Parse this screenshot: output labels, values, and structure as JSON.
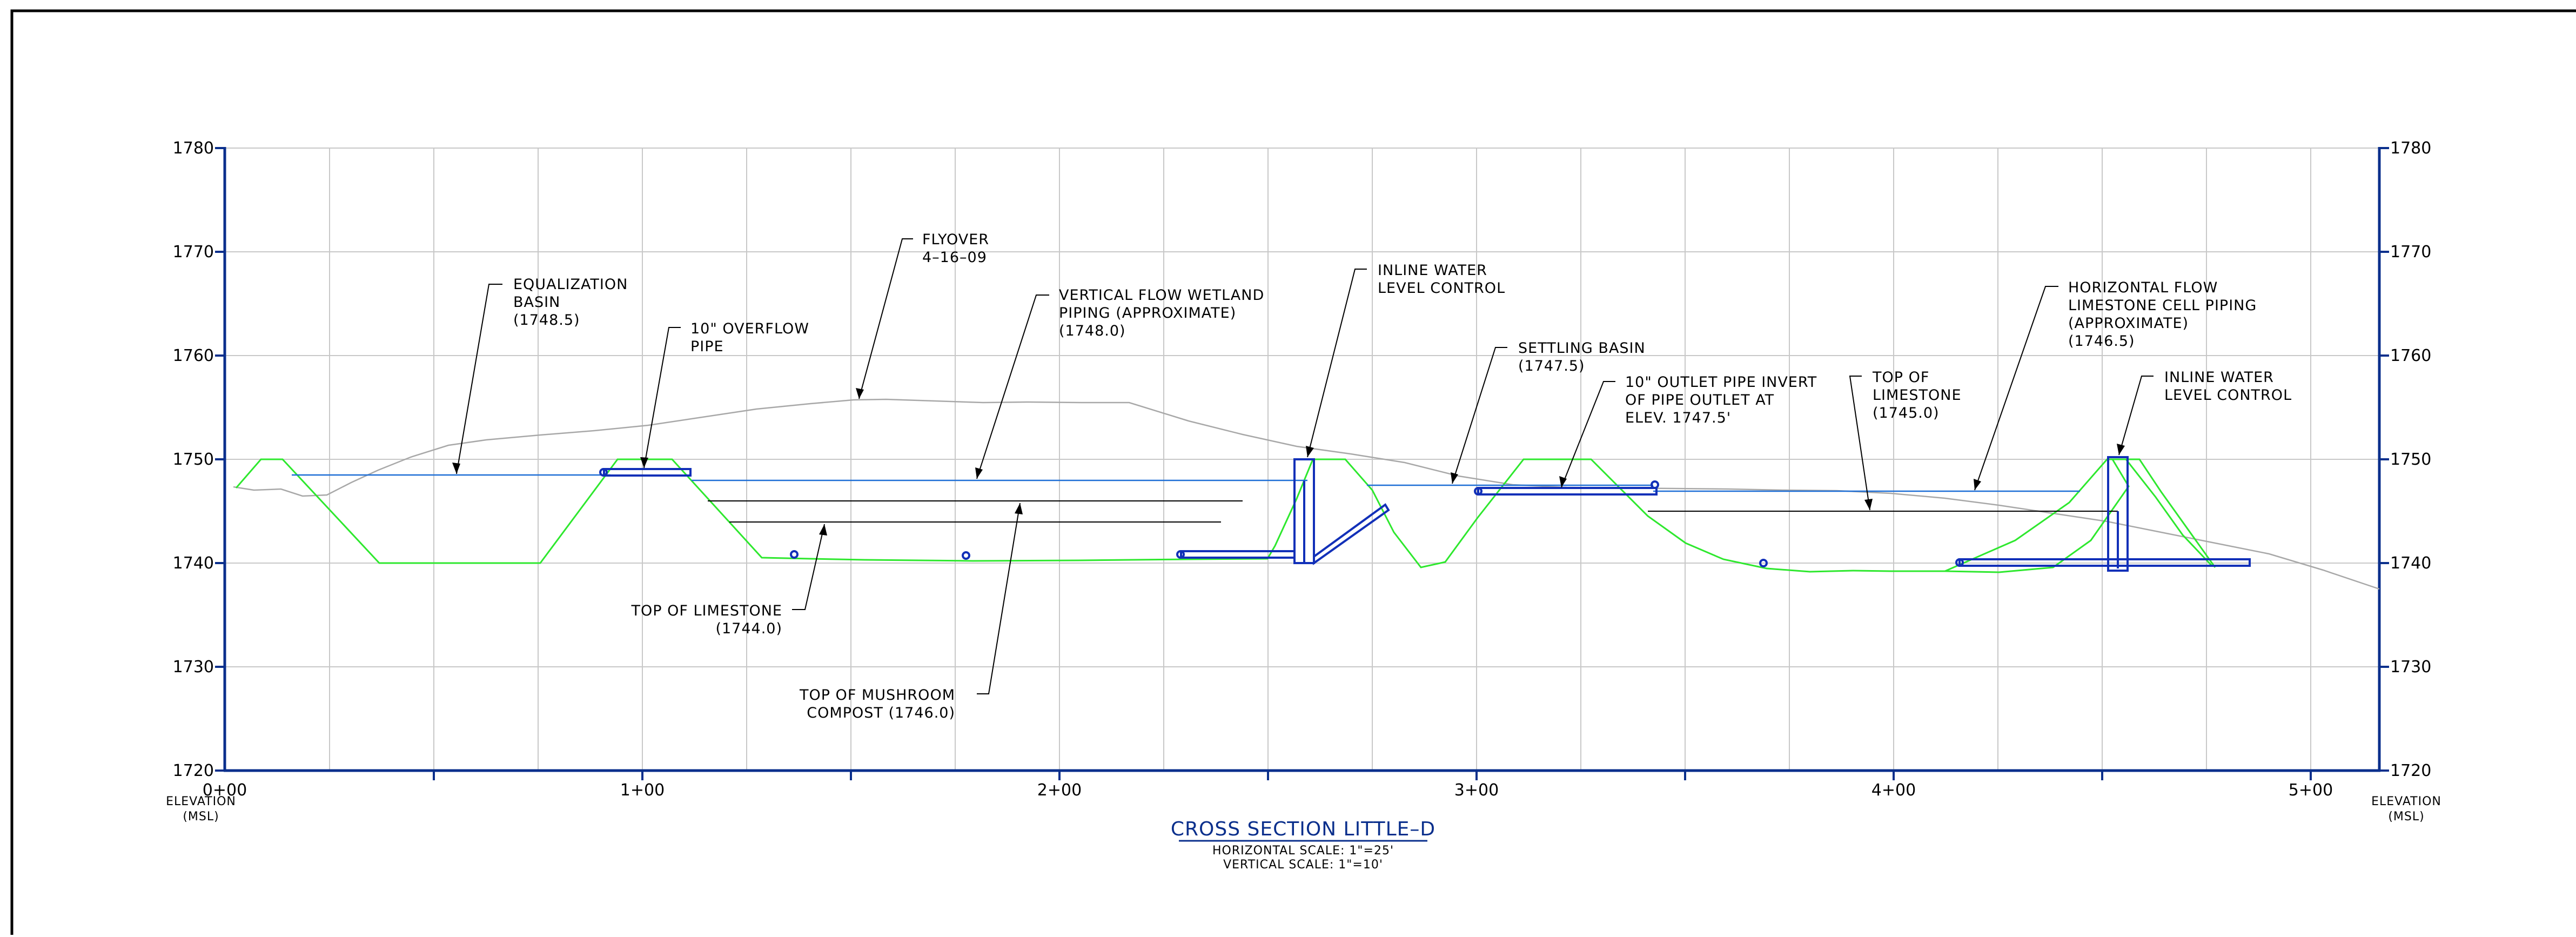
{
  "drawing": {
    "title": "CROSS SECTION LITTLE–D",
    "horizontal_scale": "HORIZONTAL SCALE: 1\"=25'",
    "vertical_scale": "VERTICAL SCALE: 1\"=10'"
  },
  "axes": {
    "left_label_line1": "ELEVATION",
    "left_label_line2": "(MSL)",
    "right_label_line1": "ELEVATION",
    "right_label_line2": "(MSL)",
    "y_ticks": [
      "1780",
      "1770",
      "1760",
      "1750",
      "1740",
      "1730",
      "1720"
    ],
    "x_ticks": [
      "0+00",
      "1+00",
      "2+00",
      "3+00",
      "4+00",
      "5+00"
    ]
  },
  "annotations": {
    "equalization_basin": [
      "EQUALIZATION",
      "BASIN",
      "(1748.5)"
    ],
    "overflow_pipe": [
      "10\" OVERFLOW",
      "PIPE"
    ],
    "flyover": [
      "FLYOVER",
      "4–16–09"
    ],
    "vertical_flow_wetland": [
      "VERTICAL FLOW WETLAND",
      "PIPING (APPROXIMATE)",
      "(1748.0)"
    ],
    "inline_water_level_control_1": [
      "INLINE WATER",
      "LEVEL CONTROL"
    ],
    "settling_basin": [
      "SETTLING BASIN",
      "(1747.5)"
    ],
    "outlet_pipe": [
      "10\" OUTLET PIPE INVERT",
      "OF PIPE OUTLET AT",
      "ELEV. 1747.5'"
    ],
    "top_of_limestone_right": [
      "TOP OF",
      "LIMESTONE",
      "(1745.0)"
    ],
    "horizontal_flow_limestone": [
      "HORIZONTAL FLOW",
      "LIMESTONE CELL PIPING",
      "(APPROXIMATE)",
      "(1746.5)"
    ],
    "inline_water_level_control_2": [
      "INLINE WATER",
      "LEVEL CONTROL"
    ],
    "top_of_limestone_left": [
      "TOP OF LIMESTONE",
      "(1744.0)"
    ],
    "top_of_mushroom_compost": [
      "TOP OF MUSHROOM",
      "COMPOST (1746.0)"
    ]
  },
  "colors": {
    "profile_green": "#2ee82e",
    "water_blue": "#1f6fd6",
    "structure_blue": "#1230b8",
    "axis_blue": "#0a2f8c",
    "grid_gray": "#c8c8c8",
    "ground_gray": "#a8a8a8"
  }
}
